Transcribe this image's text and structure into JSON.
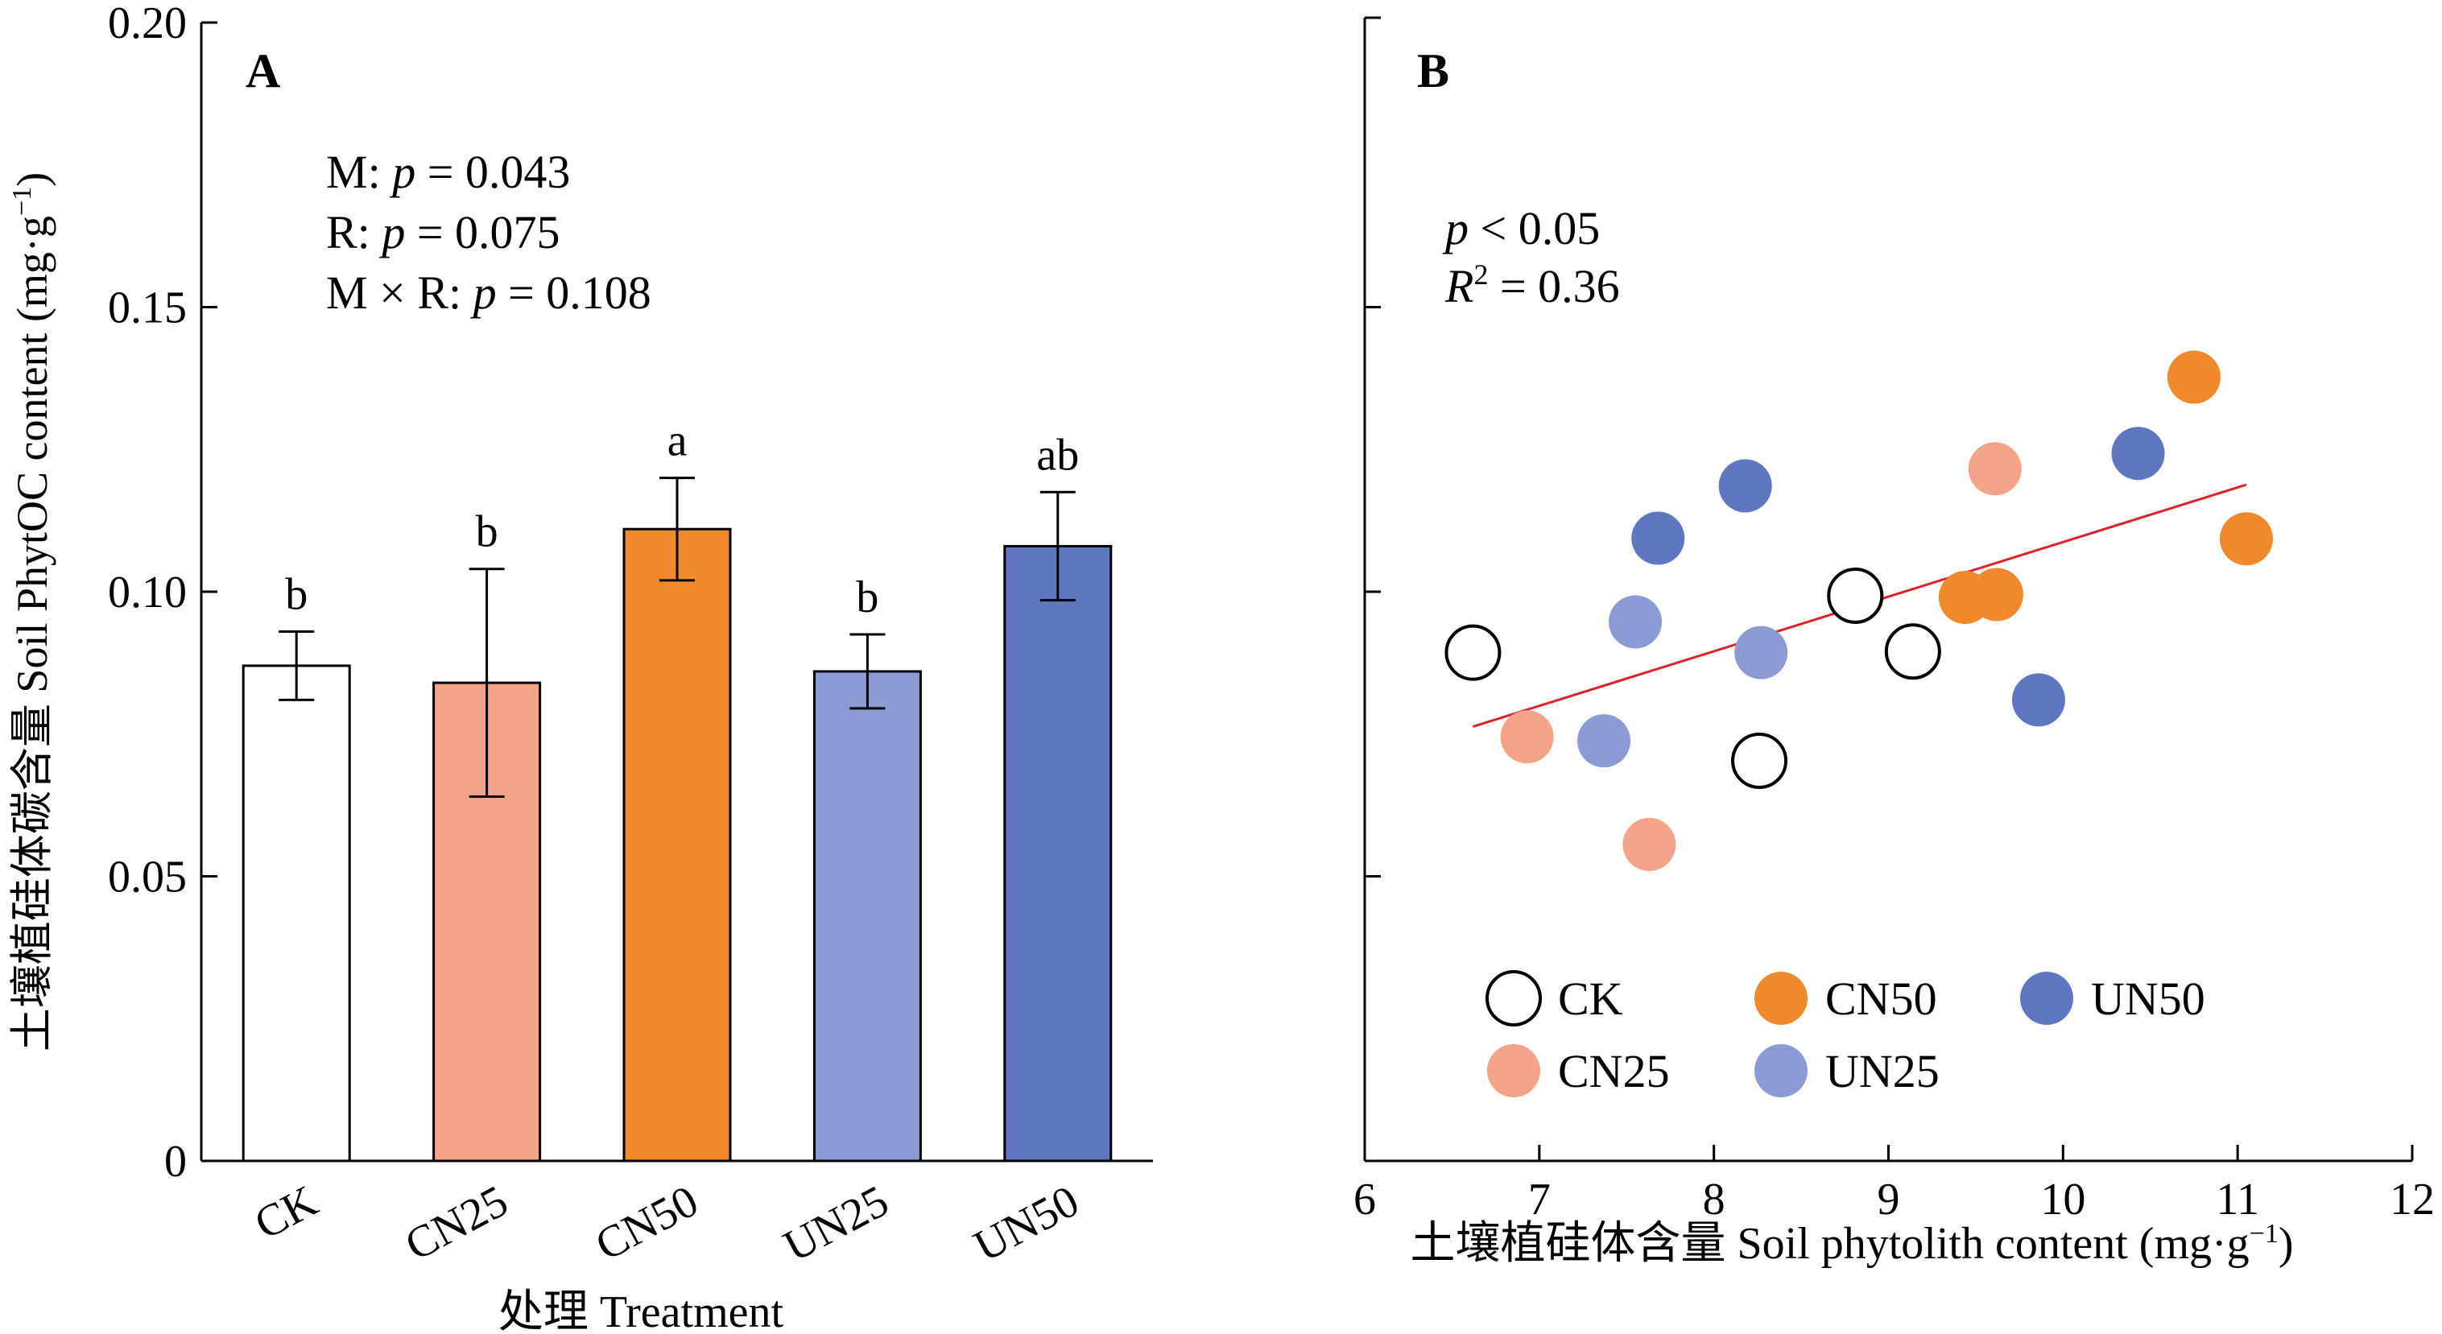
{
  "chart_data": [
    {
      "type": "bar",
      "panel_label": "A",
      "xlabel": "处理 Treatment",
      "ylabel": "土壤植硅体碳含量 Soil PhytOC content (mg·g",
      "ylabel_sup": "−1",
      "ylabel_close": ")",
      "ylim": [
        0,
        0.2
      ],
      "yticks": [
        "0",
        "0.05",
        "0.10",
        "0.15",
        "0.20"
      ],
      "ytick_values": [
        0,
        0.05,
        0.1,
        0.15,
        0.2
      ],
      "categories": [
        "CK",
        "CN25",
        "CN50",
        "UN25",
        "UN50"
      ],
      "values": [
        0.087,
        0.084,
        0.111,
        0.086,
        0.108
      ],
      "errors": [
        0.006,
        0.02,
        0.009,
        0.0065,
        0.0095
      ],
      "letters": [
        "b",
        "b",
        "a",
        "b",
        "ab"
      ],
      "colors": [
        "#ffffff",
        "#f4a488",
        "#f0892b",
        "#8d9bd5",
        "#5f76c1"
      ],
      "stats": [
        {
          "label": "M: ",
          "p": "p",
          "rest": " = 0.043"
        },
        {
          "label": "R: ",
          "p": "p",
          "rest": " = 0.075"
        },
        {
          "label": "M × R: ",
          "p": "p",
          "rest": " = 0.108"
        }
      ]
    },
    {
      "type": "scatter",
      "panel_label": "B",
      "xlabel": "土壤植硅体含量 Soil phytolith content (mg·g",
      "xlabel_sup": "−1",
      "xlabel_close": ")",
      "xlim": [
        6,
        12
      ],
      "xticks": [
        "6",
        "7",
        "8",
        "9",
        "10",
        "11",
        "12"
      ],
      "xtick_values": [
        6,
        7,
        8,
        9,
        10,
        11,
        12
      ],
      "ylim": [
        0,
        0.2
      ],
      "ytick_values": [
        0.05,
        0.1,
        0.15
      ],
      "stat_p_italic": "p",
      "stat_p_rest": " < 0.05",
      "stat_r_italic": "R",
      "stat_r_sup": "2",
      "stat_r_rest": " = 0.36",
      "fit_line": {
        "x": [
          6.62,
          11.05
        ],
        "y": [
          0.0763,
          0.1188
        ],
        "color": "#e0212b"
      },
      "series": [
        {
          "name": "CK",
          "color": "#ffffff",
          "stroke": "#000000",
          "x": [
            6.62,
            8.81,
            9.14,
            8.26
          ],
          "y": [
            0.0893,
            0.0993,
            0.0895,
            0.0703
          ]
        },
        {
          "name": "CN25",
          "color": "#f4a488",
          "x": [
            9.61,
            6.93,
            7.63
          ],
          "y": [
            0.1216,
            0.0745,
            0.0556
          ]
        },
        {
          "name": "CN50",
          "color": "#f0892b",
          "x": [
            10.75,
            11.05,
            9.44,
            9.62
          ],
          "y": [
            0.1377,
            0.1093,
            0.099,
            0.0995
          ]
        },
        {
          "name": "UN25",
          "color": "#8d9bd5",
          "x": [
            7.55,
            8.27,
            7.37
          ],
          "y": [
            0.0947,
            0.0893,
            0.0738
          ]
        },
        {
          "name": "UN50",
          "color": "#5f76c1",
          "x": [
            7.68,
            8.18,
            10.43,
            9.86
          ],
          "y": [
            0.1094,
            0.1186,
            0.1243,
            0.081
          ]
        }
      ],
      "legend_order": [
        "CK",
        "CN50",
        "UN50",
        "CN25",
        "UN25"
      ]
    }
  ]
}
